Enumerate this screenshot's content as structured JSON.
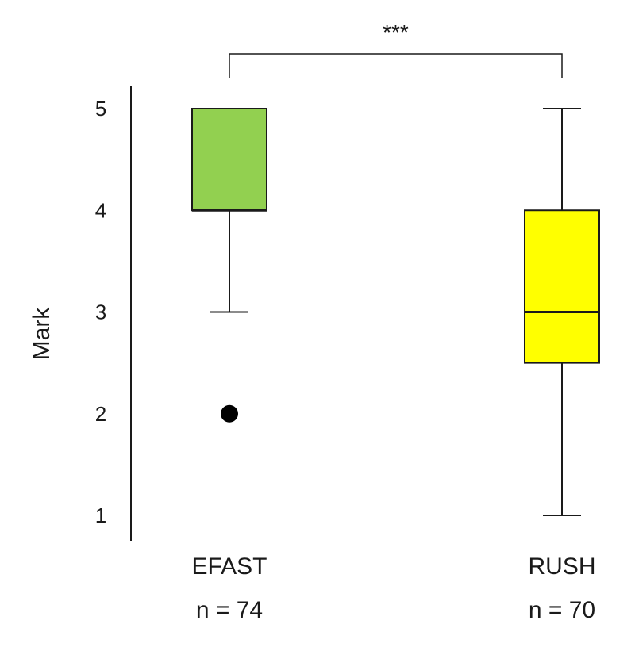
{
  "chart_data": {
    "type": "box",
    "title": "",
    "xlabel": "",
    "ylabel": "Mark",
    "ylim": [
      1,
      5
    ],
    "yticks": [
      "1",
      "2",
      "3",
      "4",
      "5"
    ],
    "grid": false,
    "significance": {
      "groups": [
        "EFAST",
        "RUSH"
      ],
      "label": "***"
    },
    "groups": [
      {
        "label": "EFAST",
        "n_label": "n = 74",
        "color": "#92d050",
        "whisker_low": 3,
        "q1": 4,
        "median": 4,
        "q3": 5,
        "whisker_high": 5,
        "outliers": [
          2
        ]
      },
      {
        "label": "RUSH",
        "n_label": "n = 70",
        "color": "#ffff00",
        "whisker_low": 1,
        "q1": 2.5,
        "median": 3,
        "q3": 4,
        "whisker_high": 5,
        "outliers": []
      }
    ]
  }
}
